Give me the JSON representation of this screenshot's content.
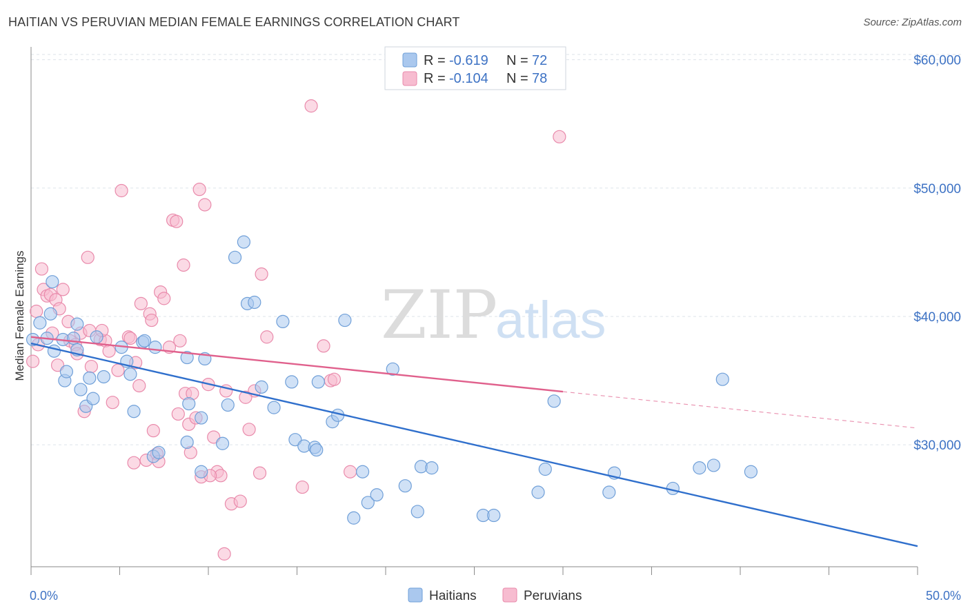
{
  "title": "HAITIAN VS PERUVIAN MEDIAN FEMALE EARNINGS CORRELATION CHART",
  "source": "Source: ZipAtlas.com",
  "watermark": {
    "zip": "ZIP",
    "atlas": "atlas"
  },
  "legend": {
    "haitians": {
      "r_label": "R =",
      "r_value": "-0.619",
      "n_label": "N =",
      "n_value": "72"
    },
    "peruvians": {
      "r_label": "R =",
      "r_value": "-0.104",
      "n_label": "N =",
      "n_value": "78"
    }
  },
  "colors": {
    "haitians_fill": "#aac8ee",
    "haitians_stroke": "#6f9fd8",
    "haitians_line": "#2f6fcc",
    "peruvians_fill": "#f7bcd0",
    "peruvians_stroke": "#e98aab",
    "peruvians_line": "#e0608c",
    "grid": "#dde3ea",
    "axis_text": "#3d72c4"
  },
  "chart_data": {
    "type": "scatter",
    "title": "HAITIAN VS PERUVIAN MEDIAN FEMALE EARNINGS CORRELATION CHART",
    "xlabel": "",
    "ylabel": "Median Female Earnings",
    "xlim": [
      0,
      50
    ],
    "ylim": [
      20500,
      61000
    ],
    "x_tick_labels": [
      "0.0%",
      "50.0%"
    ],
    "y_ticks": [
      30000,
      40000,
      50000,
      60000
    ],
    "y_tick_labels": [
      "$30,000",
      "$40,000",
      "$50,000",
      "$60,000"
    ],
    "grid": "horizontal dashed",
    "legend_position": "top-center",
    "series": [
      {
        "name": "Haitians",
        "r": -0.619,
        "n": 72,
        "trend": {
          "x": [
            0,
            50
          ],
          "y": [
            37900,
            22100
          ],
          "dashed_from": null
        },
        "points": [
          [
            0.1,
            38200
          ],
          [
            0.9,
            38300
          ],
          [
            1.2,
            42700
          ],
          [
            1.1,
            40200
          ],
          [
            1.8,
            38200
          ],
          [
            2.6,
            39400
          ],
          [
            2.4,
            38300
          ],
          [
            2.6,
            37400
          ],
          [
            1.9,
            35000
          ],
          [
            2.8,
            34300
          ],
          [
            3.1,
            33000
          ],
          [
            3.3,
            35200
          ],
          [
            3.7,
            38400
          ],
          [
            5.1,
            37600
          ],
          [
            6.3,
            38000
          ],
          [
            6.4,
            38100
          ],
          [
            5.6,
            35500
          ],
          [
            5.8,
            32600
          ],
          [
            7.0,
            37600
          ],
          [
            6.9,
            29100
          ],
          [
            7.2,
            29400
          ],
          [
            8.8,
            36800
          ],
          [
            8.8,
            30200
          ],
          [
            9.6,
            27900
          ],
          [
            8.9,
            33200
          ],
          [
            9.6,
            32100
          ],
          [
            9.8,
            36700
          ],
          [
            11.1,
            33100
          ],
          [
            10.8,
            30100
          ],
          [
            11.5,
            44600
          ],
          [
            12.0,
            45800
          ],
          [
            12.2,
            41000
          ],
          [
            12.6,
            41100
          ],
          [
            13.0,
            34500
          ],
          [
            13.7,
            32900
          ],
          [
            14.2,
            39600
          ],
          [
            14.7,
            34900
          ],
          [
            14.9,
            30400
          ],
          [
            15.4,
            29900
          ],
          [
            16.0,
            29800
          ],
          [
            16.1,
            29600
          ],
          [
            16.2,
            34900
          ],
          [
            17.0,
            31800
          ],
          [
            17.3,
            32300
          ],
          [
            17.7,
            39700
          ],
          [
            18.2,
            24300
          ],
          [
            18.7,
            27900
          ],
          [
            19.0,
            25500
          ],
          [
            19.5,
            26100
          ],
          [
            20.4,
            35900
          ],
          [
            21.1,
            26800
          ],
          [
            21.8,
            24800
          ],
          [
            22.0,
            28300
          ],
          [
            22.6,
            28200
          ],
          [
            25.5,
            24500
          ],
          [
            26.1,
            24500
          ],
          [
            28.6,
            26300
          ],
          [
            29.0,
            28100
          ],
          [
            29.5,
            33400
          ],
          [
            32.6,
            26300
          ],
          [
            32.9,
            27800
          ],
          [
            36.2,
            26600
          ],
          [
            37.7,
            28200
          ],
          [
            38.5,
            28400
          ],
          [
            39.0,
            35100
          ],
          [
            40.6,
            27900
          ],
          [
            0.5,
            39500
          ],
          [
            1.3,
            37300
          ],
          [
            2.0,
            35700
          ],
          [
            3.5,
            33600
          ],
          [
            4.1,
            35300
          ],
          [
            5.4,
            36500
          ]
        ]
      },
      {
        "name": "Peruvians",
        "r": -0.104,
        "n": 78,
        "trend": {
          "x": [
            0,
            50
          ],
          "y": [
            38400,
            31300
          ],
          "dashed_from": 30
        },
        "points": [
          [
            0.1,
            36500
          ],
          [
            0.3,
            40400
          ],
          [
            0.6,
            43700
          ],
          [
            0.7,
            42100
          ],
          [
            0.9,
            41600
          ],
          [
            1.1,
            41700
          ],
          [
            1.4,
            41300
          ],
          [
            1.6,
            40600
          ],
          [
            1.2,
            38700
          ],
          [
            1.8,
            42100
          ],
          [
            2.2,
            38100
          ],
          [
            2.5,
            37800
          ],
          [
            2.6,
            37100
          ],
          [
            2.8,
            38700
          ],
          [
            3.2,
            44600
          ],
          [
            3.3,
            38900
          ],
          [
            3.4,
            36100
          ],
          [
            3.0,
            32600
          ],
          [
            3.9,
            38200
          ],
          [
            4.2,
            38100
          ],
          [
            4.4,
            37300
          ],
          [
            4.6,
            33300
          ],
          [
            4.9,
            35800
          ],
          [
            5.1,
            49800
          ],
          [
            5.5,
            38400
          ],
          [
            5.6,
            38300
          ],
          [
            5.9,
            36400
          ],
          [
            6.1,
            34600
          ],
          [
            6.2,
            41000
          ],
          [
            6.7,
            40200
          ],
          [
            6.8,
            39700
          ],
          [
            6.9,
            31100
          ],
          [
            7.1,
            29300
          ],
          [
            7.2,
            28700
          ],
          [
            7.3,
            41900
          ],
          [
            7.5,
            41400
          ],
          [
            7.8,
            37600
          ],
          [
            8.0,
            47500
          ],
          [
            8.2,
            47400
          ],
          [
            8.3,
            32400
          ],
          [
            8.4,
            38100
          ],
          [
            8.6,
            44000
          ],
          [
            8.7,
            34000
          ],
          [
            8.9,
            31600
          ],
          [
            9.1,
            34000
          ],
          [
            9.3,
            32100
          ],
          [
            9.5,
            49900
          ],
          [
            9.8,
            48700
          ],
          [
            10.0,
            34700
          ],
          [
            10.3,
            30600
          ],
          [
            10.5,
            27900
          ],
          [
            10.7,
            27600
          ],
          [
            10.9,
            21500
          ],
          [
            11.0,
            34200
          ],
          [
            11.3,
            25400
          ],
          [
            11.8,
            25600
          ],
          [
            12.3,
            31200
          ],
          [
            12.6,
            34200
          ],
          [
            12.9,
            27800
          ],
          [
            13.0,
            43300
          ],
          [
            13.3,
            38400
          ],
          [
            15.3,
            26700
          ],
          [
            15.8,
            56400
          ],
          [
            16.5,
            37700
          ],
          [
            16.9,
            35000
          ],
          [
            18.0,
            27900
          ],
          [
            29.8,
            54000
          ],
          [
            0.4,
            37800
          ],
          [
            1.5,
            36200
          ],
          [
            2.1,
            39600
          ],
          [
            5.8,
            28600
          ],
          [
            6.5,
            28800
          ],
          [
            9.0,
            29400
          ],
          [
            9.6,
            27500
          ],
          [
            10.1,
            27600
          ],
          [
            12.1,
            33700
          ],
          [
            17.1,
            35100
          ],
          [
            4.0,
            38900
          ]
        ]
      }
    ]
  },
  "bottom_legend": {
    "haitians": "Haitians",
    "peruvians": "Peruvians"
  }
}
